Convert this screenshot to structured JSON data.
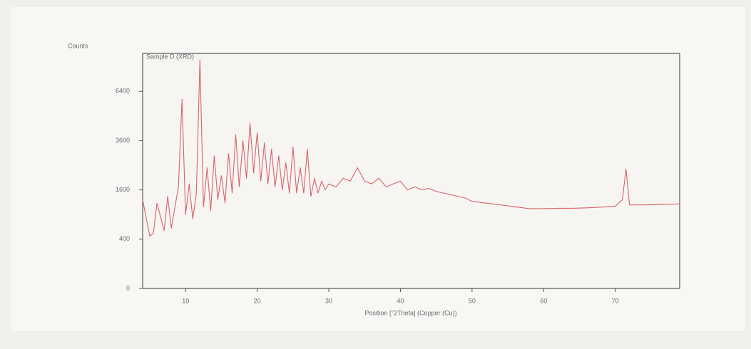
{
  "chart_data": {
    "type": "line",
    "title": "Sample D (XRD)",
    "y_label": "Counts",
    "x_label": "Position [°2Theta] (Copper (Cu))",
    "y_scale": "sqrt",
    "grid": false,
    "xlim": [
      4,
      79
    ],
    "ylim": [
      0,
      9100
    ],
    "xticks": [
      10,
      20,
      30,
      40,
      50,
      60,
      70
    ],
    "yticks": [
      0,
      400,
      1600,
      3600,
      6400
    ],
    "x": [
      4,
      5,
      5.5,
      6,
      7,
      7.5,
      8,
      9,
      9.5,
      10,
      10.5,
      11,
      11.5,
      12,
      12.5,
      13,
      13.5,
      14,
      14.5,
      15,
      15.5,
      16,
      16.5,
      17,
      17.5,
      18,
      18.5,
      19,
      19.5,
      20,
      20.5,
      21,
      21.5,
      22,
      22.5,
      23,
      23.5,
      24,
      24.5,
      25,
      25.5,
      26,
      26.5,
      27,
      27.5,
      28,
      28.5,
      29,
      29.5,
      30,
      31,
      32,
      33,
      34,
      35,
      36,
      37,
      38,
      39,
      40,
      41,
      42,
      43,
      44,
      45,
      46,
      47,
      48,
      49,
      50,
      52,
      54,
      56,
      58,
      60,
      62,
      64,
      66,
      68,
      70,
      71,
      71.5,
      72,
      74,
      76,
      78,
      79
    ],
    "series": [
      {
        "color": "#d9646a",
        "values": [
          1300,
          450,
          500,
          1200,
          550,
          1400,
          600,
          1700,
          5900,
          900,
          1800,
          800,
          1500,
          8600,
          1100,
          2400,
          1000,
          2900,
          1300,
          2100,
          1200,
          3000,
          1500,
          3900,
          1700,
          3600,
          2000,
          4500,
          2200,
          4000,
          1900,
          3500,
          1800,
          3200,
          1700,
          2900,
          1600,
          2600,
          1500,
          3300,
          1500,
          2400,
          1500,
          3200,
          1400,
          2000,
          1500,
          1900,
          1600,
          1800,
          1700,
          2000,
          1900,
          2400,
          1900,
          1800,
          2000,
          1700,
          1800,
          1900,
          1600,
          1700,
          1600,
          1650,
          1550,
          1500,
          1450,
          1400,
          1350,
          1250,
          1200,
          1150,
          1100,
          1050,
          1050,
          1060,
          1060,
          1070,
          1090,
          1110,
          1300,
          2350,
          1150,
          1150,
          1160,
          1170,
          1180
        ]
      }
    ]
  }
}
